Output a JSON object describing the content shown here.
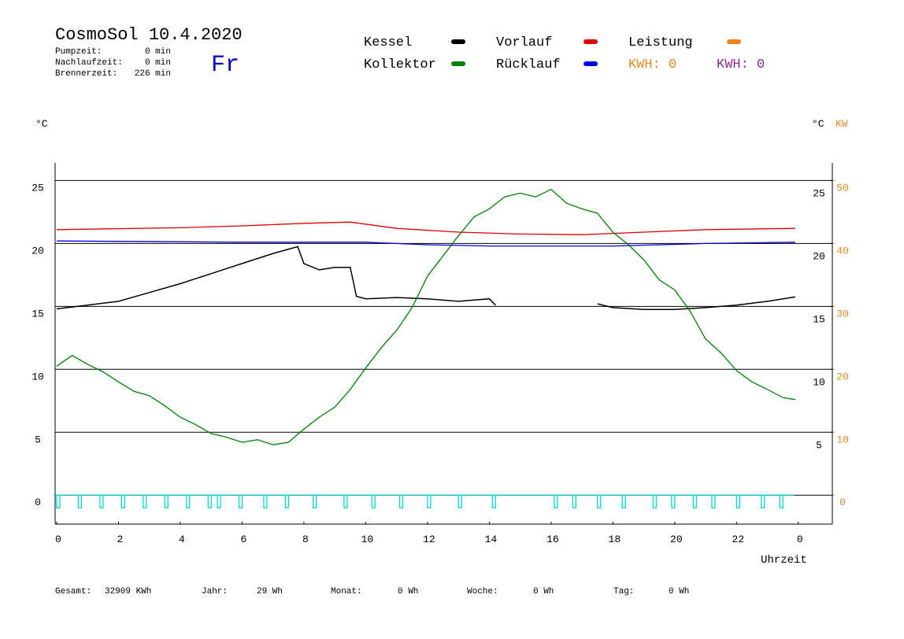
{
  "chart_data": {
    "type": "line",
    "title": "CosmoSol 10.4.2020",
    "day": "Fr",
    "stats": [
      {
        "label": "Pumpzeit:",
        "value": "0 min"
      },
      {
        "label": "Nachlaufzeit:",
        "value": "0 min"
      },
      {
        "label": "Brennerzeit:",
        "value": "226 min"
      }
    ],
    "kwh_labels": [
      {
        "text": "KWH: 0",
        "color": "#e08a1e"
      },
      {
        "text": "KWH: 0",
        "color": "#8a2c8a"
      }
    ],
    "y_unit": "°C",
    "y_unit_right": "°C",
    "y2_unit": "KW",
    "x_label": "Uhrzeit",
    "xlim": [
      -0.05,
      25.1
    ],
    "xticks": [
      0,
      2,
      4,
      6,
      8,
      10,
      12,
      14,
      16,
      18,
      20,
      22,
      {
        "value": 24,
        "label": "0"
      }
    ],
    "ylim": [
      -2.3,
      26.4
    ],
    "yticks": [
      0,
      5,
      10,
      15,
      20,
      25
    ],
    "yticks_right": [
      5,
      10,
      15,
      20,
      25
    ],
    "y2lim": [
      -4.6,
      52.8
    ],
    "y2ticks": [
      0,
      10,
      20,
      30,
      40,
      50
    ],
    "grid": true,
    "series": [
      {
        "name": "Kessel",
        "color": "#000000",
        "x": [
          0,
          1,
          2,
          3,
          4,
          5,
          6,
          7,
          7.8,
          8,
          8.5,
          9,
          9.5,
          9.7,
          10,
          11,
          12,
          13,
          14,
          14.2,
          16,
          17.5,
          18,
          19,
          20,
          21,
          22,
          23,
          23.9
        ],
        "values": [
          14.8,
          15.1,
          15.4,
          16.1,
          16.8,
          17.6,
          18.4,
          19.2,
          19.75,
          18.4,
          17.9,
          18.1,
          18.1,
          15.8,
          15.6,
          15.7,
          15.6,
          15.4,
          15.6,
          15.1,
          null,
          15.2,
          14.9,
          14.75,
          14.75,
          14.9,
          15.1,
          15.4,
          15.75
        ]
      },
      {
        "name": "Vorlauf",
        "color": "#e00000",
        "x": [
          0,
          4,
          6,
          8,
          9.5,
          11,
          13,
          15,
          17,
          19,
          21,
          23.9
        ],
        "values": [
          21.1,
          21.25,
          21.4,
          21.6,
          21.7,
          21.2,
          20.9,
          20.75,
          20.7,
          20.9,
          21.1,
          21.2
        ]
      },
      {
        "name": "Leistung",
        "color": "#f08020",
        "axis": "y2",
        "x": [],
        "values": []
      },
      {
        "name": "Kollektor",
        "color": "#008000",
        "x": [
          0,
          0.5,
          1,
          1.5,
          2,
          2.5,
          3,
          3.5,
          4,
          4.5,
          5,
          5.5,
          6,
          6.5,
          7,
          7.5,
          8,
          8.5,
          9,
          9.5,
          10,
          10.5,
          11,
          11.5,
          12,
          12.5,
          13,
          13.5,
          14,
          14.5,
          15,
          15.5,
          16,
          16.5,
          17,
          17.5,
          18,
          18.5,
          19,
          19.5,
          20,
          20.5,
          21,
          21.5,
          22,
          22.5,
          23,
          23.5,
          23.9
        ],
        "values": [
          10.25,
          11.1,
          10.4,
          9.8,
          9.0,
          8.25,
          7.9,
          7.1,
          6.2,
          5.6,
          4.9,
          4.6,
          4.2,
          4.4,
          4.0,
          4.2,
          5.25,
          6.2,
          7.0,
          8.4,
          10.1,
          11.7,
          13.1,
          14.9,
          17.4,
          19.0,
          20.6,
          22.1,
          22.75,
          23.7,
          24.0,
          23.7,
          24.3,
          23.2,
          22.75,
          22.4,
          20.9,
          19.9,
          18.7,
          17.1,
          16.3,
          14.6,
          12.4,
          11.3,
          9.9,
          9.0,
          8.4,
          7.75,
          7.6
        ]
      },
      {
        "name": "Rücklauf",
        "color": "#0000e0",
        "x": [
          0,
          6,
          10,
          12,
          14,
          18,
          21,
          23.9
        ],
        "values": [
          20.2,
          20.1,
          20.1,
          19.9,
          19.8,
          19.8,
          20.0,
          20.1
        ]
      },
      {
        "color": "#00d8d8",
        "style": "pulse",
        "x": [
          0,
          0.7,
          1.4,
          2.1,
          2.8,
          3.5,
          4.2,
          4.9,
          5.2,
          5.9,
          6.7,
          7.4,
          8.3,
          9.3,
          10.2,
          11.1,
          12.0,
          13.0,
          14.1,
          16.1,
          16.7,
          17.5,
          18.3,
          19.3,
          19.9,
          20.6,
          21.2,
          22.0,
          22.8,
          23.4
        ],
        "values": [
          -1,
          -1,
          -1,
          -1,
          -1,
          -1,
          -1,
          -1,
          -1,
          -1,
          -1,
          -1,
          -1,
          -1,
          -1,
          -1,
          -1,
          -1,
          -1,
          -1,
          -1,
          -1,
          -1,
          -1,
          -1,
          -1,
          -1,
          -1,
          -1,
          -1
        ]
      }
    ],
    "footer": [
      {
        "label": "Gesamt:",
        "value": "32909 KWh"
      },
      {
        "label": "Jahr:",
        "value": "29 Wh"
      },
      {
        "label": "Monat:",
        "value": "0 Wh"
      },
      {
        "label": "Woche:",
        "value": "0 Wh"
      },
      {
        "label": "Tag:",
        "value": "0 Wh"
      }
    ]
  }
}
